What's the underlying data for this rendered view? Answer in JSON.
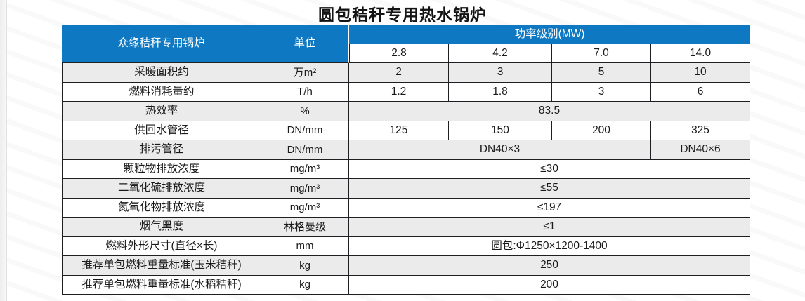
{
  "page": {
    "title": "圆包秸秆专用热水锅炉"
  },
  "colors": {
    "header_blue": "#0e79c2",
    "row_alt_gray": "#ebebeb",
    "border_dark": "#1d1f23"
  },
  "table": {
    "corner": {
      "product": "众缘秸秆专用锅炉",
      "unit": "单位"
    },
    "power_header": {
      "label": "功率级别(MW)",
      "levels": [
        "2.8",
        "4.2",
        "7.0",
        "14.0"
      ]
    },
    "rows": [
      {
        "label": "采暖面积约",
        "unit": "万m²",
        "type": "per-level",
        "values": [
          "2",
          "3",
          "5",
          "10"
        ]
      },
      {
        "label": "燃料消耗量约",
        "unit": "T/h",
        "type": "per-level",
        "values": [
          "1.2",
          "1.8",
          "3",
          "6"
        ]
      },
      {
        "label": "热效率",
        "unit": "%",
        "type": "merged",
        "value": "83.5"
      },
      {
        "label": "供回水管径",
        "unit": "DN/mm",
        "type": "per-level",
        "values": [
          "125",
          "150",
          "200",
          "325"
        ]
      },
      {
        "label": "排污管径",
        "unit": "DN/mm",
        "type": "split",
        "value_first3": "DN40×3",
        "value_last": "DN40×6"
      },
      {
        "label": "颗粒物排放浓度",
        "unit": "mg/m³",
        "type": "merged",
        "value": "≤30"
      },
      {
        "label": "二氧化硫排放浓度",
        "unit": "mg/m³",
        "type": "merged",
        "value": "≤55"
      },
      {
        "label": "氮氧化物排放浓度",
        "unit": "mg/m³",
        "type": "merged",
        "value": "≤197"
      },
      {
        "label": "烟气黑度",
        "unit": "林格曼级",
        "type": "merged",
        "value": "≤1"
      },
      {
        "label": "燃料外形尺寸(直径×长)",
        "unit": "mm",
        "type": "merged",
        "value": "圆包:Φ1250×1200-1400"
      },
      {
        "label": "推荐单包燃料重量标准(玉米秸秆)",
        "unit": "kg",
        "type": "merged",
        "value": "250"
      },
      {
        "label": "推荐单包燃料重量标准(水稻秸秆)",
        "unit": "kg",
        "type": "merged",
        "value": "200"
      }
    ]
  }
}
